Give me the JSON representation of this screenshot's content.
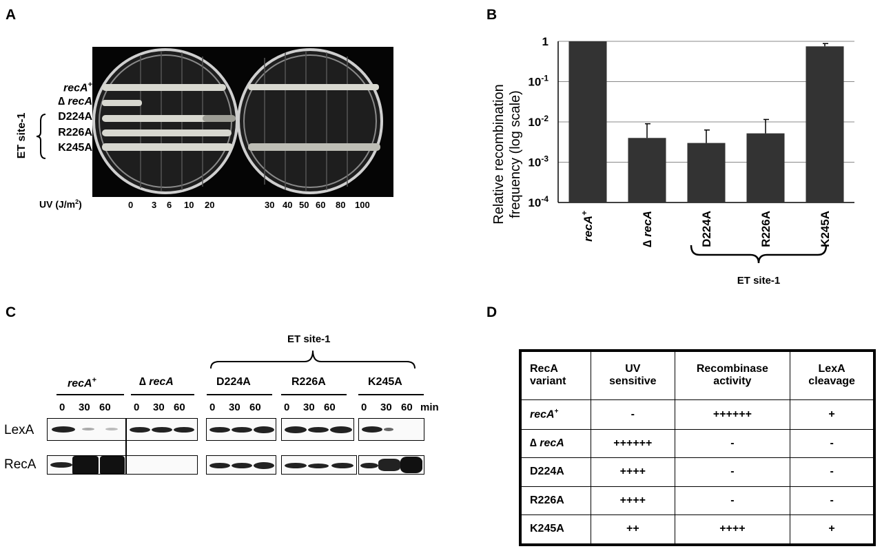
{
  "panels": {
    "a": "A",
    "b": "B",
    "c": "C",
    "d": "D"
  },
  "panel_a": {
    "strains": [
      {
        "name": "recA",
        "sup": "+"
      },
      {
        "name": "∆ recA",
        "sup": ""
      },
      {
        "name": "D224A",
        "sup": ""
      },
      {
        "name": "R226A",
        "sup": ""
      },
      {
        "name": "K245A",
        "sup": ""
      }
    ],
    "group_label": "ET site-1",
    "uv_label": "UV (J/m",
    "uv_sup": "2",
    "uv_label_end": ")",
    "uv_doses": [
      "0",
      "3",
      "6",
      "10",
      "20",
      "30",
      "40",
      "50",
      "60",
      "80",
      "100"
    ]
  },
  "chart_data": {
    "type": "bar",
    "ylabel_line1": "Relative recombination",
    "ylabel_line2": "frequency (log scale)",
    "yscale": "log",
    "ylim": [
      0.0001,
      1
    ],
    "ytick_labels": [
      {
        "base": "1",
        "exp": ""
      },
      {
        "base": "10",
        "exp": "-1"
      },
      {
        "base": "10",
        "exp": "-2"
      },
      {
        "base": "10",
        "exp": "-3"
      },
      {
        "base": "10",
        "exp": "-4"
      }
    ],
    "categories": [
      "recA+",
      "∆ recA",
      "D224A",
      "R226A",
      "K245A"
    ],
    "category_labels": [
      {
        "text": "recA",
        "sup": "+",
        "italic": true
      },
      {
        "text": "∆ recA",
        "sup": "",
        "italic": true
      },
      {
        "text": "D224A",
        "sup": "",
        "italic": false
      },
      {
        "text": "R226A",
        "sup": "",
        "italic": false
      },
      {
        "text": "K245A",
        "sup": "",
        "italic": false
      }
    ],
    "values": [
      1,
      0.004,
      0.003,
      0.0052,
      0.75
    ],
    "error_upper": [
      1,
      0.009,
      0.0063,
      0.0115,
      0.88
    ],
    "grid": true,
    "bar_color": "#333333",
    "group_label": "ET site-1"
  },
  "panel_c": {
    "group_label": "ET site-1",
    "strains": [
      {
        "name": "recA",
        "sup": "+"
      },
      {
        "name": "∆ recA",
        "sup": ""
      },
      {
        "name": "D224A",
        "sup": ""
      },
      {
        "name": "R226A",
        "sup": ""
      },
      {
        "name": "K245A",
        "sup": ""
      }
    ],
    "timepoints": [
      "0",
      "30",
      "60"
    ],
    "time_unit": "min",
    "rows": [
      "LexA",
      "RecA"
    ]
  },
  "panel_d": {
    "headers": [
      [
        "RecA",
        "variant"
      ],
      [
        "UV",
        "sensitive"
      ],
      [
        "Recombinase",
        "activity"
      ],
      [
        "LexA",
        "cleavage"
      ]
    ],
    "rows": [
      {
        "variant": "recA",
        "sup": "+",
        "italic": true,
        "uv": "-",
        "recombinase": "++++++",
        "lexa": "+"
      },
      {
        "variant": "∆ recA",
        "sup": "",
        "italic": true,
        "uv": "++++++",
        "recombinase": "-",
        "lexa": "-"
      },
      {
        "variant": "D224A",
        "sup": "",
        "italic": false,
        "uv": "++++",
        "recombinase": "-",
        "lexa": "-"
      },
      {
        "variant": "R226A",
        "sup": "",
        "italic": false,
        "uv": "++++",
        "recombinase": "-",
        "lexa": "-"
      },
      {
        "variant": "K245A",
        "sup": "",
        "italic": false,
        "uv": "++",
        "recombinase": "++++",
        "lexa": "+"
      }
    ]
  }
}
